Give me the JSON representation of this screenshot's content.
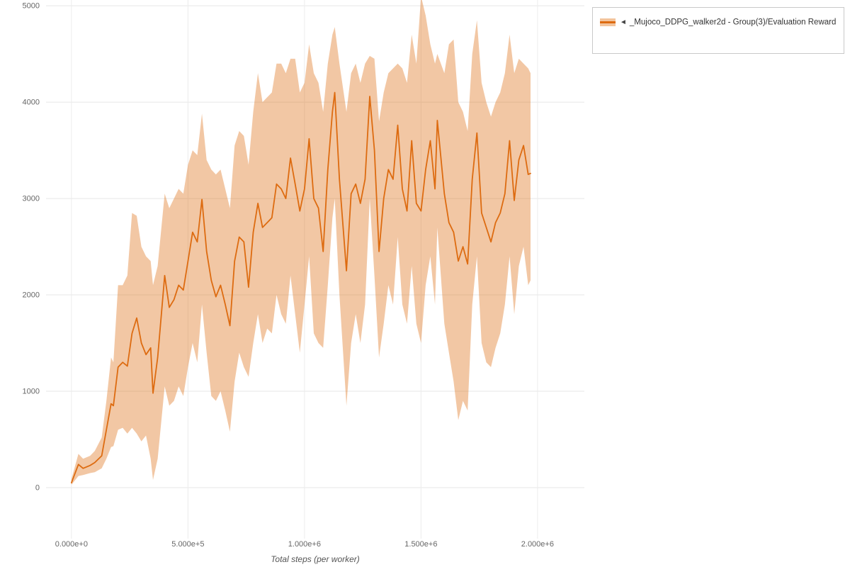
{
  "page": {
    "background": "#ffffff"
  },
  "legend": {
    "collapse_icon": "◄",
    "label": "_Mujoco_DDPG_walker2d - Group(3)/Evaluation Reward",
    "line_color": "#dd6b10",
    "band_color": "#f3c49c"
  },
  "chart_data": {
    "type": "line",
    "title": "",
    "xlabel": "Total steps (per worker)",
    "ylabel": "",
    "grid": true,
    "legend_position": "top-right",
    "xlim": [
      -109000,
      2201000
    ],
    "ylim": [
      -530,
      5060
    ],
    "x_ticks": [
      {
        "value": 0,
        "label": "0.000e+0"
      },
      {
        "value": 500000,
        "label": "5.000e+5"
      },
      {
        "value": 1000000,
        "label": "1.000e+6"
      },
      {
        "value": 1500000,
        "label": "1.500e+6"
      },
      {
        "value": 2000000,
        "label": "2.000e+6"
      }
    ],
    "y_ticks": [
      {
        "value": 0,
        "label": "0"
      },
      {
        "value": 1000,
        "label": "1000"
      },
      {
        "value": 2000,
        "label": "2000"
      },
      {
        "value": 3000,
        "label": "3000"
      },
      {
        "value": 4000,
        "label": "4000"
      },
      {
        "value": 5000,
        "label": "5000"
      }
    ],
    "series": [
      {
        "name": "_Mujoco_DDPG_walker2d - Group(3)/Evaluation Reward",
        "color": "#dd6b10",
        "band_opacity": 0.38,
        "x": [
          0,
          30000,
          50000,
          80000,
          100000,
          130000,
          150000,
          170000,
          180000,
          200000,
          220000,
          240000,
          260000,
          280000,
          300000,
          320000,
          340000,
          350000,
          370000,
          400000,
          420000,
          440000,
          460000,
          480000,
          500000,
          520000,
          540000,
          560000,
          580000,
          600000,
          620000,
          640000,
          660000,
          680000,
          700000,
          720000,
          740000,
          760000,
          780000,
          800000,
          820000,
          840000,
          860000,
          880000,
          900000,
          920000,
          940000,
          960000,
          980000,
          1000000,
          1020000,
          1040000,
          1060000,
          1080000,
          1100000,
          1120000,
          1130000,
          1150000,
          1180000,
          1200000,
          1220000,
          1240000,
          1260000,
          1280000,
          1300000,
          1320000,
          1340000,
          1360000,
          1380000,
          1400000,
          1420000,
          1440000,
          1460000,
          1480000,
          1500000,
          1520000,
          1540000,
          1560000,
          1570000,
          1600000,
          1620000,
          1640000,
          1660000,
          1680000,
          1700000,
          1720000,
          1740000,
          1760000,
          1780000,
          1800000,
          1820000,
          1840000,
          1860000,
          1880000,
          1900000,
          1920000,
          1940000,
          1960000,
          1970000
        ],
        "mean": [
          50,
          240,
          200,
          230,
          260,
          330,
          600,
          870,
          850,
          1250,
          1300,
          1260,
          1600,
          1760,
          1500,
          1380,
          1450,
          980,
          1350,
          2200,
          1870,
          1950,
          2100,
          2050,
          2350,
          2650,
          2550,
          2990,
          2450,
          2150,
          1980,
          2100,
          1900,
          1680,
          2350,
          2600,
          2550,
          2080,
          2650,
          2950,
          2700,
          2750,
          2800,
          3150,
          3100,
          3000,
          3420,
          3150,
          2870,
          3100,
          3620,
          3000,
          2900,
          2450,
          3300,
          3900,
          4100,
          3200,
          2250,
          3050,
          3150,
          2950,
          3200,
          4060,
          3500,
          2450,
          3000,
          3300,
          3200,
          3760,
          3100,
          2870,
          3600,
          2950,
          2870,
          3300,
          3600,
          3100,
          3810,
          3050,
          2750,
          2650,
          2350,
          2500,
          2320,
          3200,
          3680,
          2850,
          2700,
          2550,
          2750,
          2850,
          3050,
          3600,
          2980,
          3400,
          3550,
          3250,
          3260
        ],
        "low": [
          30,
          120,
          130,
          150,
          160,
          200,
          300,
          420,
          430,
          600,
          620,
          560,
          620,
          560,
          480,
          540,
          300,
          80,
          300,
          1050,
          850,
          900,
          1050,
          950,
          1250,
          1500,
          1300,
          1900,
          1400,
          950,
          900,
          1000,
          800,
          580,
          1100,
          1400,
          1250,
          1150,
          1500,
          1800,
          1500,
          1650,
          1600,
          2000,
          1800,
          1700,
          2200,
          1800,
          1400,
          1900,
          2400,
          1600,
          1500,
          1450,
          2100,
          2800,
          3000,
          2000,
          850,
          1500,
          1800,
          1500,
          1900,
          3000,
          2200,
          1350,
          1700,
          2100,
          1900,
          2600,
          1900,
          1700,
          2300,
          1700,
          1500,
          2100,
          2400,
          1900,
          2700,
          1700,
          1400,
          1100,
          700,
          900,
          800,
          1900,
          2400,
          1500,
          1300,
          1250,
          1450,
          1600,
          1900,
          2400,
          1800,
          2300,
          2500,
          2100,
          2150
        ],
        "high": [
          90,
          350,
          300,
          330,
          380,
          520,
          900,
          1350,
          1300,
          2100,
          2100,
          2200,
          2850,
          2820,
          2500,
          2400,
          2350,
          2100,
          2300,
          3050,
          2900,
          3000,
          3100,
          3050,
          3350,
          3500,
          3450,
          3880,
          3400,
          3300,
          3250,
          3300,
          3100,
          2900,
          3550,
          3700,
          3650,
          3350,
          3900,
          4300,
          4000,
          4050,
          4100,
          4400,
          4400,
          4300,
          4450,
          4450,
          4100,
          4200,
          4600,
          4300,
          4200,
          3900,
          4400,
          4700,
          4780,
          4400,
          3900,
          4300,
          4400,
          4200,
          4400,
          4480,
          4450,
          3800,
          4100,
          4300,
          4350,
          4400,
          4350,
          4200,
          4700,
          4400,
          5100,
          4900,
          4600,
          4400,
          4500,
          4300,
          4600,
          4650,
          4000,
          3900,
          3700,
          4500,
          4850,
          4200,
          4000,
          3850,
          4000,
          4100,
          4300,
          4700,
          4300,
          4450,
          4400,
          4350,
          4300
        ]
      }
    ]
  }
}
